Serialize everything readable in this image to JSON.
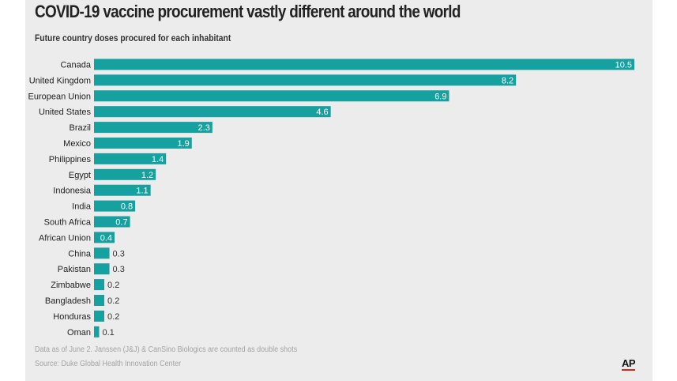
{
  "title": "COVID-19 vaccine procurement vastly different around the world",
  "subtitle": "Future country doses procured for each inhabitant",
  "note": "Data as of June 2. Janssen (J&J) & CanSino Biologics are counted as double shots",
  "source": "Source: Duke Global Health Innovation Center",
  "logo": "AP",
  "colors": {
    "bar": "#17a0a0",
    "background": "#ececec",
    "logo_accent": "#e0221b"
  },
  "chart_data": {
    "type": "bar",
    "orientation": "horizontal",
    "categories": [
      "Canada",
      "United Kingdom",
      "European Union",
      "United States",
      "Brazil",
      "Mexico",
      "Philippines",
      "Egypt",
      "Indonesia",
      "India",
      "South Africa",
      "African Union",
      "China",
      "Pakistan",
      "Zimbabwe",
      "Bangladesh",
      "Honduras",
      "Oman"
    ],
    "values": [
      10.5,
      8.2,
      6.9,
      4.6,
      2.3,
      1.9,
      1.4,
      1.2,
      1.1,
      0.8,
      0.7,
      0.4,
      0.3,
      0.3,
      0.2,
      0.2,
      0.2,
      0.1
    ],
    "labels": [
      "10.5",
      "8.2",
      "6.9",
      "4.6",
      "2.3",
      "1.9",
      "1.4",
      "1.2",
      "1.1",
      "0.8",
      "0.7",
      "0.4",
      "0.3",
      "0.3",
      "0.2",
      "0.2",
      "0.2",
      "0.1"
    ],
    "title": "COVID-19 vaccine procurement vastly different around the world",
    "subtitle": "Future country doses procured for each inhabitant",
    "xlim": [
      0,
      10.5
    ],
    "grid": false,
    "legend": "none"
  }
}
